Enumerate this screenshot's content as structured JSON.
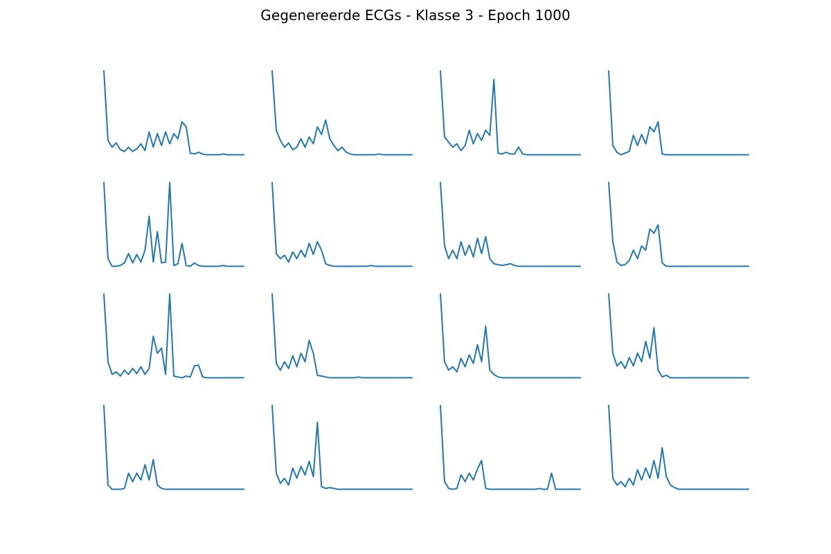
{
  "title": "Gegenereerde ECGs - Klasse 3 - Epoch 1000",
  "colors": {
    "line": "#1f77b4",
    "background": "#ffffff"
  },
  "chart_data": [
    {
      "type": "line",
      "y": [
        1.0,
        0.18,
        0.1,
        0.15,
        0.07,
        0.05,
        0.1,
        0.05,
        0.08,
        0.14,
        0.06,
        0.28,
        0.1,
        0.26,
        0.12,
        0.28,
        0.14,
        0.26,
        0.2,
        0.4,
        0.34,
        0.03,
        0.02,
        0.04,
        0.02,
        0.01,
        0.01,
        0.01,
        0.01,
        0.02,
        0.01,
        0.01,
        0.01,
        0.01,
        0.01
      ],
      "xlim": [
        0,
        34
      ],
      "ylim": [
        -0.01,
        1.02
      ],
      "grid": false,
      "axis": "off"
    },
    {
      "type": "line",
      "y": [
        1.0,
        0.3,
        0.18,
        0.1,
        0.15,
        0.07,
        0.1,
        0.2,
        0.1,
        0.22,
        0.14,
        0.34,
        0.25,
        0.42,
        0.2,
        0.12,
        0.06,
        0.1,
        0.04,
        0.02,
        0.01,
        0.01,
        0.01,
        0.01,
        0.01,
        0.01,
        0.02,
        0.01,
        0.01,
        0.01,
        0.01,
        0.01,
        0.01,
        0.01,
        0.01
      ],
      "xlim": [
        0,
        34
      ],
      "ylim": [
        -0.01,
        1.02
      ],
      "grid": false,
      "axis": "off"
    },
    {
      "type": "line",
      "y": [
        1.0,
        0.22,
        0.16,
        0.1,
        0.14,
        0.06,
        0.12,
        0.3,
        0.14,
        0.26,
        0.18,
        0.3,
        0.24,
        0.9,
        0.03,
        0.02,
        0.04,
        0.02,
        0.02,
        0.1,
        0.02,
        0.01,
        0.01,
        0.01,
        0.01,
        0.01,
        0.01,
        0.01,
        0.01,
        0.01,
        0.01,
        0.01,
        0.01,
        0.01,
        0.01
      ],
      "xlim": [
        0,
        34
      ],
      "ylim": [
        -0.01,
        1.02
      ],
      "grid": false,
      "axis": "off"
    },
    {
      "type": "line",
      "y": [
        1.0,
        0.12,
        0.04,
        0.01,
        0.03,
        0.05,
        0.24,
        0.12,
        0.25,
        0.14,
        0.34,
        0.28,
        0.4,
        0.02,
        0.01,
        0.01,
        0.01,
        0.01,
        0.01,
        0.01,
        0.01,
        0.01,
        0.01,
        0.01,
        0.01,
        0.01,
        0.01,
        0.01,
        0.01,
        0.01,
        0.01,
        0.01,
        0.01,
        0.01,
        0.01
      ],
      "xlim": [
        0,
        34
      ],
      "ylim": [
        -0.01,
        1.02
      ],
      "grid": false,
      "axis": "off"
    },
    {
      "type": "line",
      "y": [
        1.0,
        0.1,
        0.01,
        0.01,
        0.02,
        0.05,
        0.16,
        0.05,
        0.15,
        0.06,
        0.2,
        0.6,
        0.06,
        0.42,
        0.05,
        0.06,
        1.0,
        0.02,
        0.04,
        0.28,
        0.02,
        0.01,
        0.05,
        0.02,
        0.01,
        0.01,
        0.01,
        0.01,
        0.01,
        0.02,
        0.01,
        0.01,
        0.01,
        0.01,
        0.01
      ],
      "xlim": [
        0,
        34
      ],
      "ylim": [
        -0.01,
        1.02
      ],
      "grid": false,
      "axis": "off"
    },
    {
      "type": "line",
      "y": [
        1.0,
        0.16,
        0.1,
        0.14,
        0.06,
        0.18,
        0.1,
        0.2,
        0.12,
        0.28,
        0.15,
        0.3,
        0.2,
        0.04,
        0.02,
        0.01,
        0.01,
        0.01,
        0.01,
        0.01,
        0.01,
        0.01,
        0.01,
        0.01,
        0.02,
        0.01,
        0.01,
        0.01,
        0.01,
        0.01,
        0.01,
        0.01,
        0.01,
        0.01,
        0.01
      ],
      "xlim": [
        0,
        34
      ],
      "ylim": [
        -0.01,
        1.02
      ],
      "grid": false,
      "axis": "off"
    },
    {
      "type": "line",
      "y": [
        1.0,
        0.25,
        0.1,
        0.2,
        0.1,
        0.3,
        0.14,
        0.26,
        0.12,
        0.34,
        0.16,
        0.36,
        0.1,
        0.04,
        0.03,
        0.02,
        0.03,
        0.04,
        0.02,
        0.01,
        0.01,
        0.01,
        0.01,
        0.01,
        0.01,
        0.01,
        0.01,
        0.01,
        0.01,
        0.01,
        0.01,
        0.01,
        0.01,
        0.01,
        0.01
      ],
      "xlim": [
        0,
        34
      ],
      "ylim": [
        -0.01,
        1.02
      ],
      "grid": false,
      "axis": "off"
    },
    {
      "type": "line",
      "y": [
        1.0,
        0.3,
        0.06,
        0.02,
        0.03,
        0.08,
        0.2,
        0.1,
        0.25,
        0.2,
        0.45,
        0.4,
        0.5,
        0.05,
        0.01,
        0.01,
        0.01,
        0.01,
        0.01,
        0.01,
        0.01,
        0.01,
        0.01,
        0.01,
        0.01,
        0.01,
        0.01,
        0.01,
        0.01,
        0.01,
        0.01,
        0.01,
        0.01,
        0.01,
        0.01
      ],
      "xlim": [
        0,
        34
      ],
      "ylim": [
        -0.01,
        1.02
      ],
      "grid": false,
      "axis": "off"
    },
    {
      "type": "line",
      "y": [
        1.0,
        0.2,
        0.05,
        0.08,
        0.03,
        0.1,
        0.05,
        0.12,
        0.06,
        0.14,
        0.05,
        0.12,
        0.5,
        0.3,
        0.36,
        0.05,
        1.0,
        0.03,
        0.02,
        0.01,
        0.03,
        0.02,
        0.15,
        0.16,
        0.02,
        0.01,
        0.01,
        0.01,
        0.01,
        0.01,
        0.01,
        0.01,
        0.01,
        0.01,
        0.01
      ],
      "xlim": [
        0,
        34
      ],
      "ylim": [
        -0.01,
        1.02
      ],
      "grid": false,
      "axis": "off"
    },
    {
      "type": "line",
      "y": [
        1.0,
        0.18,
        0.1,
        0.2,
        0.12,
        0.27,
        0.14,
        0.3,
        0.2,
        0.45,
        0.3,
        0.04,
        0.03,
        0.02,
        0.01,
        0.01,
        0.01,
        0.01,
        0.01,
        0.01,
        0.01,
        0.02,
        0.01,
        0.01,
        0.01,
        0.01,
        0.01,
        0.01,
        0.01,
        0.01,
        0.01,
        0.01,
        0.01,
        0.01,
        0.01
      ],
      "xlim": [
        0,
        34
      ],
      "ylim": [
        -0.01,
        1.02
      ],
      "grid": false,
      "axis": "off"
    },
    {
      "type": "line",
      "y": [
        1.0,
        0.2,
        0.1,
        0.14,
        0.08,
        0.24,
        0.14,
        0.28,
        0.18,
        0.4,
        0.2,
        0.62,
        0.1,
        0.05,
        0.02,
        0.01,
        0.01,
        0.01,
        0.01,
        0.01,
        0.01,
        0.01,
        0.01,
        0.01,
        0.01,
        0.01,
        0.01,
        0.01,
        0.01,
        0.01,
        0.01,
        0.01,
        0.01,
        0.01,
        0.01
      ],
      "xlim": [
        0,
        34
      ],
      "ylim": [
        -0.01,
        1.02
      ],
      "grid": false,
      "axis": "off"
    },
    {
      "type": "line",
      "y": [
        1.0,
        0.3,
        0.15,
        0.2,
        0.12,
        0.25,
        0.15,
        0.3,
        0.2,
        0.44,
        0.24,
        0.6,
        0.1,
        0.02,
        0.04,
        0.01,
        0.01,
        0.01,
        0.01,
        0.01,
        0.01,
        0.01,
        0.01,
        0.01,
        0.01,
        0.01,
        0.01,
        0.01,
        0.01,
        0.01,
        0.01,
        0.01,
        0.01,
        0.01,
        0.01
      ],
      "xlim": [
        0,
        34
      ],
      "ylim": [
        -0.01,
        1.02
      ],
      "grid": false,
      "axis": "off"
    },
    {
      "type": "line",
      "y": [
        1.0,
        0.06,
        0.01,
        0.01,
        0.01,
        0.02,
        0.2,
        0.1,
        0.2,
        0.12,
        0.3,
        0.12,
        0.36,
        0.06,
        0.02,
        0.01,
        0.01,
        0.01,
        0.01,
        0.01,
        0.01,
        0.01,
        0.01,
        0.01,
        0.01,
        0.01,
        0.01,
        0.01,
        0.01,
        0.01,
        0.01,
        0.01,
        0.01,
        0.01,
        0.01
      ],
      "xlim": [
        0,
        34
      ],
      "ylim": [
        -0.01,
        1.02
      ],
      "grid": false,
      "axis": "off"
    },
    {
      "type": "line",
      "y": [
        1.0,
        0.2,
        0.08,
        0.14,
        0.06,
        0.26,
        0.14,
        0.28,
        0.18,
        0.34,
        0.16,
        0.8,
        0.04,
        0.02,
        0.03,
        0.02,
        0.01,
        0.01,
        0.01,
        0.01,
        0.01,
        0.01,
        0.01,
        0.01,
        0.01,
        0.01,
        0.01,
        0.01,
        0.01,
        0.01,
        0.01,
        0.01,
        0.01,
        0.01,
        0.01
      ],
      "xlim": [
        0,
        34
      ],
      "ylim": [
        -0.01,
        1.02
      ],
      "grid": false,
      "axis": "off"
    },
    {
      "type": "line",
      "y": [
        1.0,
        0.1,
        0.02,
        0.01,
        0.02,
        0.18,
        0.1,
        0.2,
        0.12,
        0.25,
        0.35,
        0.02,
        0.01,
        0.01,
        0.01,
        0.01,
        0.01,
        0.01,
        0.01,
        0.01,
        0.01,
        0.01,
        0.01,
        0.01,
        0.02,
        0.01,
        0.01,
        0.2,
        0.01,
        0.01,
        0.01,
        0.01,
        0.01,
        0.01,
        0.01
      ],
      "xlim": [
        0,
        34
      ],
      "ylim": [
        -0.01,
        1.02
      ],
      "grid": false,
      "axis": "off"
    },
    {
      "type": "line",
      "y": [
        1.0,
        0.14,
        0.06,
        0.1,
        0.04,
        0.14,
        0.06,
        0.24,
        0.12,
        0.26,
        0.14,
        0.35,
        0.14,
        0.5,
        0.16,
        0.06,
        0.03,
        0.01,
        0.01,
        0.01,
        0.01,
        0.01,
        0.01,
        0.01,
        0.01,
        0.01,
        0.01,
        0.01,
        0.01,
        0.01,
        0.01,
        0.01,
        0.01,
        0.01,
        0.01
      ],
      "xlim": [
        0,
        34
      ],
      "ylim": [
        -0.01,
        1.02
      ],
      "grid": false,
      "axis": "off"
    }
  ]
}
